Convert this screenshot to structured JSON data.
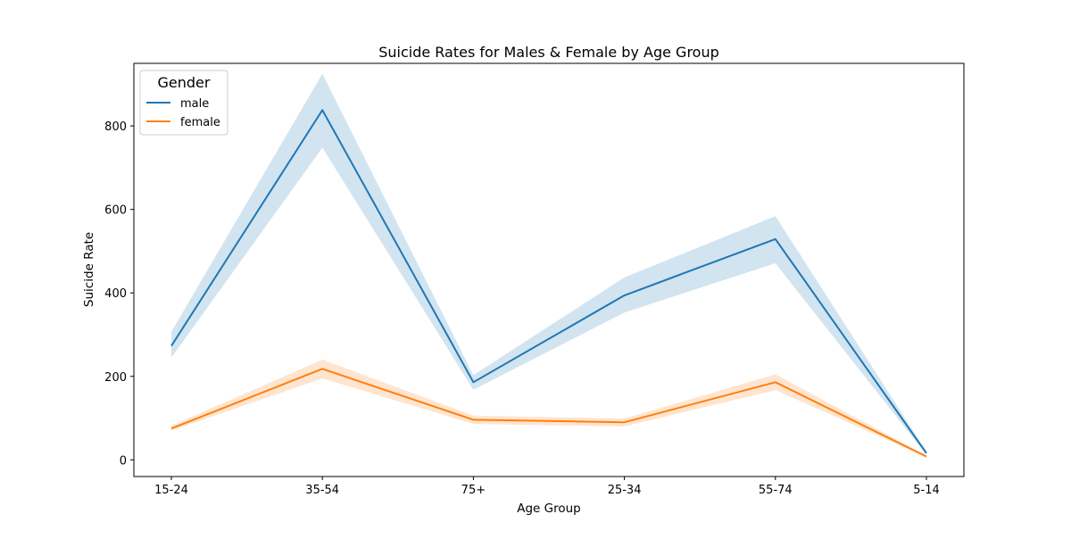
{
  "chart_data": {
    "type": "line",
    "title": "Suicide Rates for Males & Female by Age Group",
    "xlabel": "Age Group",
    "ylabel": "Suicide Rate",
    "categories": [
      "15-24",
      "35-54",
      "75+",
      "25-34",
      "55-74",
      "5-14"
    ],
    "ylim": [
      -40,
      950
    ],
    "yticks": [
      0,
      200,
      400,
      600,
      800
    ],
    "grid": false,
    "legend": {
      "title": "Gender",
      "placement": "top-left"
    },
    "series": [
      {
        "name": "male",
        "color": "#1f77b4",
        "values": [
          273,
          838,
          186,
          394,
          529,
          16
        ],
        "ci_lower": [
          245,
          748,
          168,
          353,
          471,
          12
        ],
        "ci_upper": [
          307,
          925,
          203,
          437,
          584,
          20
        ]
      },
      {
        "name": "female",
        "color": "#ff7f0e",
        "values": [
          75,
          218,
          96,
          90,
          186,
          8
        ],
        "ci_lower": [
          70,
          195,
          86,
          80,
          167,
          6
        ],
        "ci_upper": [
          82,
          240,
          106,
          99,
          205,
          10
        ]
      }
    ]
  }
}
